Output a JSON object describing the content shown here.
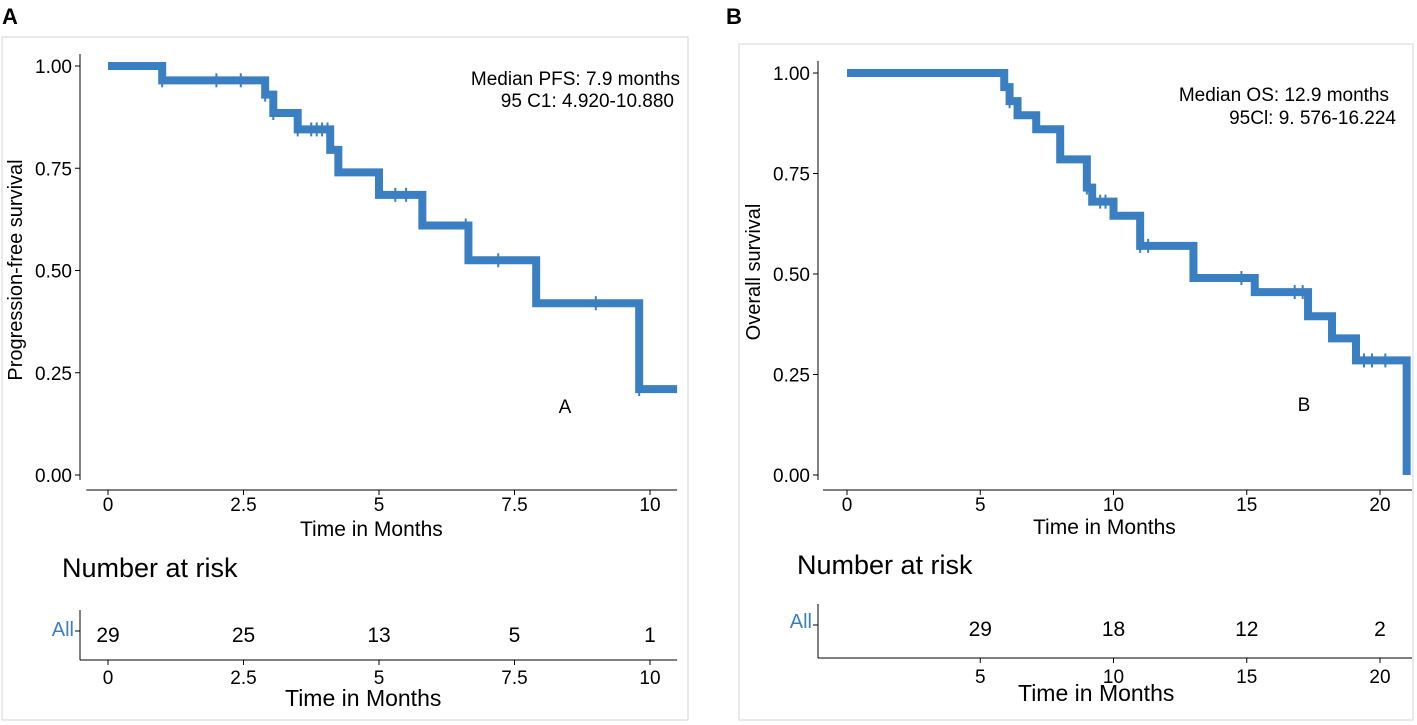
{
  "colors": {
    "curve": "#3a7fc1",
    "axis": "#000000",
    "panel_border": "#d6d6d6",
    "risk_label": "#3a7fc1"
  },
  "chart_data": [
    {
      "type": "line",
      "panel_label": "A",
      "curve_label": "A",
      "xlabel": "Time in Months",
      "ylabel": "Progression-free survival",
      "xlim": [
        -0.4,
        10.5
      ],
      "ylim": [
        0,
        1
      ],
      "xticks": [
        0,
        2.5,
        5,
        7.5,
        10
      ],
      "xtick_labels": [
        "0",
        "2.5",
        "5",
        "7.5",
        "10"
      ],
      "yticks": [
        0,
        0.25,
        0.5,
        0.75,
        1.0
      ],
      "ytick_labels": [
        "0.00",
        "0.25",
        "0.50",
        "0.75",
        "1.00"
      ],
      "annotation_lines": [
        "Median PFS: 7.9 months",
        "95 C1: 4.920-10.880"
      ],
      "series": [
        {
          "name": "All",
          "steps": [
            [
              0,
              1.0
            ],
            [
              1.0,
              0.965
            ],
            [
              2.9,
              0.93
            ],
            [
              3.05,
              0.885
            ],
            [
              3.5,
              0.845
            ],
            [
              4.1,
              0.795
            ],
            [
              4.25,
              0.74
            ],
            [
              5.0,
              0.685
            ],
            [
              5.8,
              0.61
            ],
            [
              6.65,
              0.525
            ],
            [
              7.9,
              0.42
            ],
            [
              9.8,
              0.21
            ],
            [
              10.5,
              0.21
            ]
          ],
          "censor_times": [
            1.0,
            2.0,
            2.45,
            2.9,
            3.05,
            3.5,
            3.75,
            3.85,
            3.95,
            4.05,
            5.3,
            5.5,
            6.6,
            7.2,
            9.0,
            9.8
          ]
        }
      ],
      "risk_table": {
        "title": "Number at risk",
        "group": "All",
        "times": [
          0,
          2.5,
          5,
          7.5,
          10
        ],
        "counts": [
          "29",
          "25",
          "13",
          "5",
          "1"
        ],
        "tick_labels": [
          "0",
          "2.5",
          "5",
          "7.5",
          "10"
        ],
        "xlabel": "Time in Months"
      }
    },
    {
      "type": "line",
      "panel_label": "B",
      "curve_label": "B",
      "xlabel": "Time in Months",
      "ylabel": "Overall survival",
      "xlim": [
        -0.9,
        21.2
      ],
      "ylim": [
        0,
        1
      ],
      "xticks": [
        0,
        5,
        10,
        15,
        20
      ],
      "xtick_labels": [
        "0",
        "5",
        "10",
        "15",
        "20"
      ],
      "yticks": [
        0,
        0.25,
        0.5,
        0.75,
        1.0
      ],
      "ytick_labels": [
        "0.00",
        "0.25",
        "0.50",
        "0.75",
        "1.00"
      ],
      "annotation_lines": [
        "Median OS: 12.9 months",
        "95Cl: 9. 576-16.224"
      ],
      "series": [
        {
          "name": "All",
          "steps": [
            [
              0,
              1.0
            ],
            [
              5.9,
              0.965
            ],
            [
              6.1,
              0.93
            ],
            [
              6.4,
              0.895
            ],
            [
              7.1,
              0.86
            ],
            [
              8.0,
              0.785
            ],
            [
              9.0,
              0.715
            ],
            [
              9.2,
              0.68
            ],
            [
              10.0,
              0.645
            ],
            [
              11.0,
              0.57
            ],
            [
              13.0,
              0.49
            ],
            [
              15.3,
              0.455
            ],
            [
              17.3,
              0.395
            ],
            [
              18.2,
              0.34
            ],
            [
              19.1,
              0.285
            ],
            [
              21.0,
              0.0
            ]
          ],
          "censor_times": [
            6.1,
            9.0,
            9.5,
            9.7,
            11.0,
            11.3,
            14.8,
            16.8,
            17.1,
            19.4,
            19.7,
            20.2
          ]
        }
      ],
      "risk_table": {
        "title": "Number at risk",
        "group": "All",
        "times": [
          5,
          10,
          15,
          20
        ],
        "counts": [
          "29",
          "18",
          "12",
          "2"
        ],
        "tick_labels": [
          "5",
          "10",
          "15",
          "20"
        ],
        "xlabel": "Time in Months"
      }
    }
  ]
}
